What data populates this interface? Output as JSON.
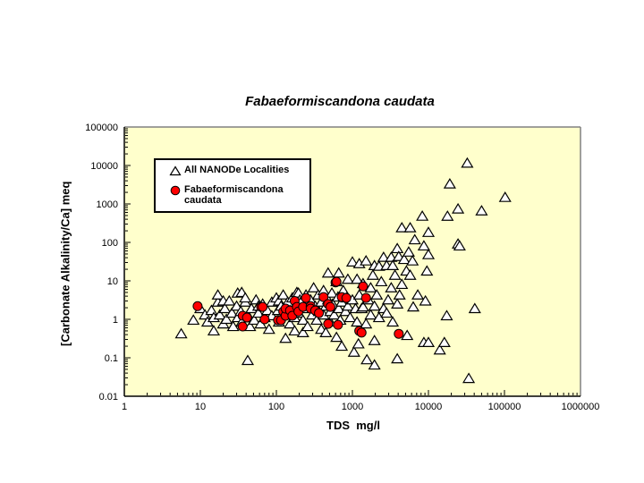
{
  "title": "Fabaeformiscandona caudata",
  "legend": {
    "items": [
      {
        "label": "All NANODe Localities",
        "marker": "triangle",
        "fill": "#FFFFFF",
        "stroke": "#000000"
      },
      {
        "label": "Fabaeformiscandona caudata",
        "marker": "circle",
        "fill": "#FF0000",
        "stroke": "#000000"
      }
    ]
  },
  "colors": {
    "plot_background": "#FFFFCC",
    "page_background": "#FFFFFF",
    "border_gray": "#808080",
    "axis_black": "#000000",
    "marker_red": "#FF0000"
  },
  "chart_data": {
    "type": "scatter",
    "title": "Fabaeformiscandona caudata",
    "xlabel": "TDS  mg/l",
    "ylabel": "[Carbonate Alkalinity/Ca] meq",
    "x_scale": "log",
    "y_scale": "log",
    "xlim": [
      1,
      1000000
    ],
    "ylim": [
      0.01,
      100000
    ],
    "x_ticks": [
      1,
      10,
      100,
      1000,
      10000,
      100000,
      1000000
    ],
    "y_ticks": [
      0.01,
      0.1,
      1,
      10,
      100,
      1000,
      10000,
      100000
    ],
    "grid": false,
    "legend_position": "upper-left-inside",
    "series": [
      {
        "name": "All NANODe Localities",
        "marker": "triangle",
        "fill": "#FFFFFF",
        "stroke": "#000000",
        "points": [
          [
            5.6,
            0.42
          ],
          [
            8.1,
            0.95
          ],
          [
            10,
            1.9
          ],
          [
            11.5,
            1.3
          ],
          [
            12.4,
            0.85
          ],
          [
            14,
            1.7
          ],
          [
            15,
            1.11
          ],
          [
            15,
            0.5
          ],
          [
            17,
            2.8
          ],
          [
            17,
            4.3
          ],
          [
            18,
            1.3
          ],
          [
            20,
            0.76
          ],
          [
            20,
            3.0
          ],
          [
            21,
            1.9
          ],
          [
            22,
            1.0
          ],
          [
            24,
            3.0
          ],
          [
            26,
            1.45
          ],
          [
            27,
            0.65
          ],
          [
            30,
            2.2
          ],
          [
            31,
            1.11
          ],
          [
            31,
            4.8
          ],
          [
            34,
            1.6
          ],
          [
            35,
            0.85
          ],
          [
            35,
            5.0
          ],
          [
            39,
            2.8
          ],
          [
            39,
            3.6
          ],
          [
            42,
            1.3
          ],
          [
            42,
            0.085
          ],
          [
            45,
            0.65
          ],
          [
            47,
            1.9
          ],
          [
            51,
            0.95
          ],
          [
            54,
            3.2
          ],
          [
            58,
            1.45
          ],
          [
            58,
            2.2
          ],
          [
            62,
            0.76
          ],
          [
            66,
            2.5
          ],
          [
            70,
            1.11
          ],
          [
            76,
            1.7
          ],
          [
            80,
            0.55
          ],
          [
            87,
            2.8
          ],
          [
            87,
            1.24
          ],
          [
            100,
            3.6
          ],
          [
            105,
            1.7
          ],
          [
            108,
            0.85
          ],
          [
            108,
            3.0
          ],
          [
            115,
            2.2
          ],
          [
            123,
            4.3
          ],
          [
            132,
            1.3
          ],
          [
            132,
            0.32
          ],
          [
            141,
            2.8
          ],
          [
            151,
            1.7
          ],
          [
            151,
            0.76
          ],
          [
            162,
            3.6
          ],
          [
            174,
            1.11
          ],
          [
            174,
            0.5
          ],
          [
            186,
            2.1
          ],
          [
            186,
            5.0
          ],
          [
            195,
            4.8
          ],
          [
            195,
            1.45
          ],
          [
            204,
            3.2
          ],
          [
            209,
            2.8
          ],
          [
            224,
            0.95
          ],
          [
            224,
            0.45
          ],
          [
            245,
            4.3
          ],
          [
            257,
            1.9
          ],
          [
            257,
            0.65
          ],
          [
            282,
            3.2
          ],
          [
            295,
            1.3
          ],
          [
            309,
            6.6
          ],
          [
            324,
            2.2
          ],
          [
            339,
            0.95
          ],
          [
            355,
            4.3
          ],
          [
            363,
            1.6
          ],
          [
            389,
            2.8
          ],
          [
            389,
            0.55
          ],
          [
            417,
            5.6
          ],
          [
            417,
            1.3
          ],
          [
            447,
            2.2
          ],
          [
            447,
            0.45
          ],
          [
            479,
            16
          ],
          [
            479,
            3.2
          ],
          [
            513,
            1.6
          ],
          [
            513,
            0.85
          ],
          [
            537,
            4.8
          ],
          [
            550,
            2.5
          ],
          [
            575,
            1.3
          ],
          [
            617,
            9.5
          ],
          [
            617,
            0.34
          ],
          [
            646,
            3.8
          ],
          [
            661,
            1.9
          ],
          [
            661,
            16
          ],
          [
            692,
            0.95
          ],
          [
            724,
            2.8
          ],
          [
            724,
            0.2
          ],
          [
            758,
            5.6
          ],
          [
            813,
            1.6
          ],
          [
            832,
            3.6
          ],
          [
            871,
            2.2
          ],
          [
            871,
            11
          ],
          [
            933,
            1.11
          ],
          [
            1000,
            31
          ],
          [
            1000,
            3.2
          ],
          [
            1050,
            0.14
          ],
          [
            1100,
            1.9
          ],
          [
            1150,
            11
          ],
          [
            1150,
            0.85
          ],
          [
            1200,
            0.23
          ],
          [
            1230,
            28
          ],
          [
            1230,
            4.3
          ],
          [
            1320,
            1.9
          ],
          [
            1380,
            8.5
          ],
          [
            1380,
            2.1
          ],
          [
            1510,
            33
          ],
          [
            1510,
            0.76
          ],
          [
            1550,
            0.089
          ],
          [
            1620,
            3.2
          ],
          [
            1740,
            6.6
          ],
          [
            1740,
            1.3
          ],
          [
            1860,
            14
          ],
          [
            1950,
            25
          ],
          [
            1950,
            2.2
          ],
          [
            1950,
            0.28
          ],
          [
            1950,
            0.065
          ],
          [
            2090,
            4.3
          ],
          [
            2240,
            24
          ],
          [
            2240,
            1.11
          ],
          [
            2400,
            9.5
          ],
          [
            2570,
            41
          ],
          [
            2570,
            1.9
          ],
          [
            2820,
            25
          ],
          [
            2820,
            1.45
          ],
          [
            2950,
            3.2
          ],
          [
            3240,
            41
          ],
          [
            3240,
            6.6
          ],
          [
            3390,
            25
          ],
          [
            3390,
            0.85
          ],
          [
            3630,
            14
          ],
          [
            3890,
            69
          ],
          [
            3890,
            2.5
          ],
          [
            3890,
            0.094
          ],
          [
            4070,
            43
          ],
          [
            4170,
            4.3
          ],
          [
            4470,
            240
          ],
          [
            4470,
            8.1
          ],
          [
            4790,
            36
          ],
          [
            5130,
            18
          ],
          [
            5250,
            0.38
          ],
          [
            5500,
            56
          ],
          [
            5750,
            240
          ],
          [
            5750,
            14
          ],
          [
            6170,
            33
          ],
          [
            6310,
            2.1
          ],
          [
            6610,
            117
          ],
          [
            7240,
            4.3
          ],
          [
            8300,
            480
          ],
          [
            8710,
            81
          ],
          [
            8710,
            0.25
          ],
          [
            9120,
            3.0
          ],
          [
            9550,
            18
          ],
          [
            10000,
            182
          ],
          [
            10000,
            48
          ],
          [
            10000,
            0.25
          ],
          [
            14100,
            0.16
          ],
          [
            16200,
            0.25
          ],
          [
            17400,
            1.24
          ],
          [
            17800,
            479
          ],
          [
            19100,
            3310
          ],
          [
            24500,
            741
          ],
          [
            24500,
            91
          ],
          [
            25700,
            81
          ],
          [
            32400,
            11500
          ],
          [
            33900,
            0.029
          ],
          [
            40700,
            1.9
          ],
          [
            50000,
            661
          ],
          [
            102000,
            1480
          ]
        ]
      },
      {
        "name": "Fabaeformiscandona caudata",
        "marker": "circle",
        "fill": "#FF0000",
        "stroke": "#000000",
        "points": [
          [
            9.2,
            2.2
          ],
          [
            36,
            1.24
          ],
          [
            41,
            1.11
          ],
          [
            36,
            0.65
          ],
          [
            63,
            2.1
          ],
          [
            66,
            2.1
          ],
          [
            70,
            1.0
          ],
          [
            105,
            0.95
          ],
          [
            115,
            0.95
          ],
          [
            123,
            1.6
          ],
          [
            132,
            1.24
          ],
          [
            132,
            1.9
          ],
          [
            151,
            1.7
          ],
          [
            162,
            1.24
          ],
          [
            174,
            3.0
          ],
          [
            186,
            2.1
          ],
          [
            195,
            1.6
          ],
          [
            224,
            2.1
          ],
          [
            245,
            3.6
          ],
          [
            282,
            2.2
          ],
          [
            282,
            1.9
          ],
          [
            324,
            1.7
          ],
          [
            363,
            1.45
          ],
          [
            417,
            3.8
          ],
          [
            479,
            2.5
          ],
          [
            479,
            0.76
          ],
          [
            513,
            2.1
          ],
          [
            600,
            9.1
          ],
          [
            617,
            9.5
          ],
          [
            646,
            0.72
          ],
          [
            724,
            3.8
          ],
          [
            832,
            3.6
          ],
          [
            1230,
            0.5
          ],
          [
            1320,
            0.45
          ],
          [
            1380,
            7.2
          ],
          [
            1510,
            3.6
          ],
          [
            4070,
            0.42
          ]
        ]
      }
    ]
  }
}
